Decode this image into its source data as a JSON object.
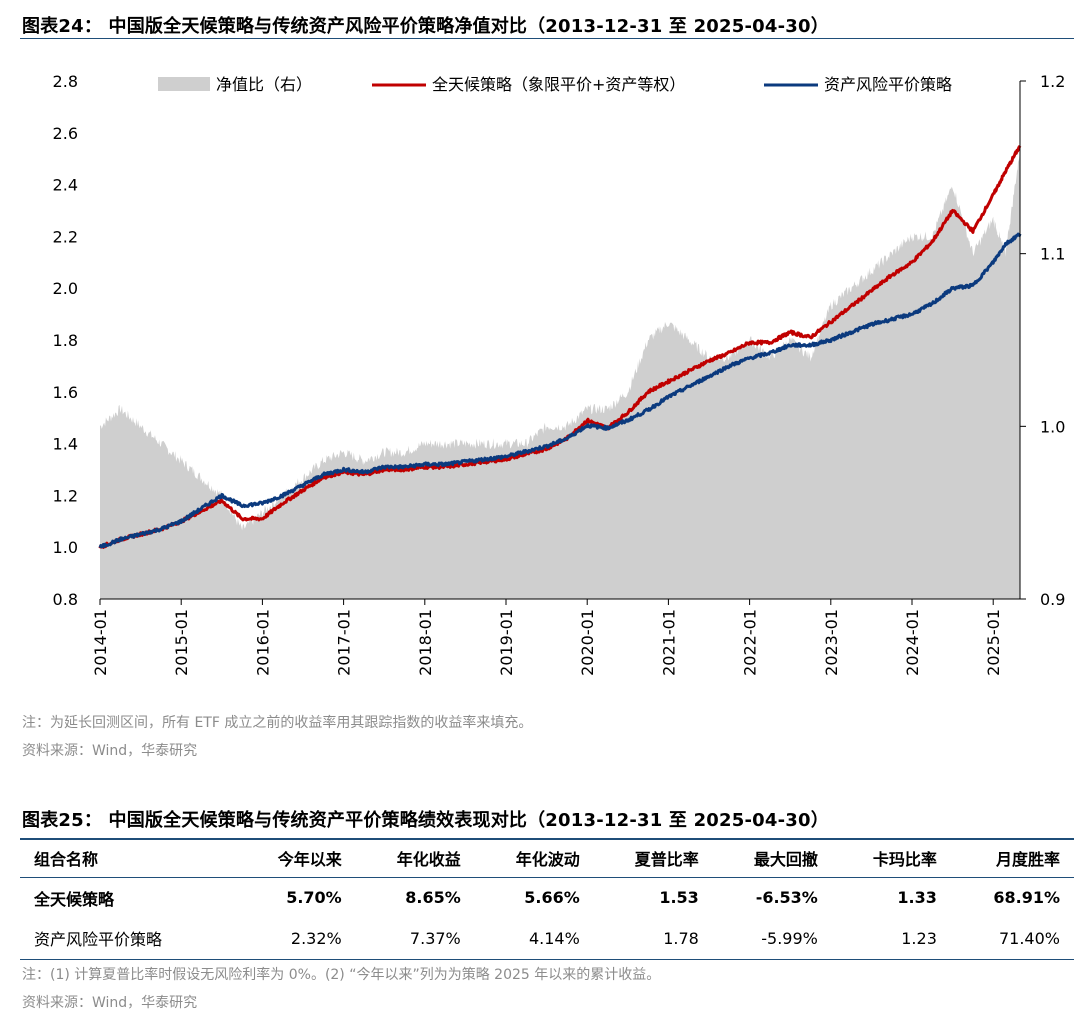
{
  "figure1": {
    "title": "图表24： 中国版全天候策略与传统资产风险平价策略净值对比（2013-12-31 至 2025-04-30）",
    "note": "注：为延长回测区间，所有 ETF 成立之前的收益率用其跟踪指数的收益率来填充。",
    "source": "资料来源：Wind，华泰研究"
  },
  "chart_data": {
    "type": "line",
    "title": "",
    "legend_position": "top",
    "x_ticks": [
      "2014-01",
      "2015-01",
      "2016-01",
      "2017-01",
      "2018-01",
      "2019-01",
      "2020-01",
      "2021-01",
      "2022-01",
      "2023-01",
      "2024-01",
      "2025-01"
    ],
    "x_range": [
      "2014-01",
      "2025-04"
    ],
    "y_left_range": [
      0.8,
      2.8
    ],
    "y_left_ticks": [
      "0.8",
      "1.0",
      "1.2",
      "1.4",
      "1.6",
      "1.8",
      "2.0",
      "2.2",
      "2.4",
      "2.6",
      "2.8"
    ],
    "y_right_range": [
      0.9,
      1.2
    ],
    "y_right_ticks": [
      "0.9",
      "1.0",
      "1.1",
      "1.2"
    ],
    "x_years": [
      2014.0,
      2014.25,
      2014.5,
      2014.75,
      2015.0,
      2015.25,
      2015.5,
      2015.75,
      2016.0,
      2016.25,
      2016.5,
      2016.75,
      2017.0,
      2017.25,
      2017.5,
      2017.75,
      2018.0,
      2018.25,
      2018.5,
      2018.75,
      2019.0,
      2019.25,
      2019.5,
      2019.75,
      2020.0,
      2020.25,
      2020.5,
      2020.75,
      2021.0,
      2021.25,
      2021.5,
      2021.75,
      2022.0,
      2022.25,
      2022.5,
      2022.75,
      2023.0,
      2023.25,
      2023.5,
      2023.75,
      2024.0,
      2024.25,
      2024.5,
      2024.75,
      2025.0,
      2025.15,
      2025.33
    ],
    "series": [
      {
        "name": "全天候策略（象限平价+资产等权）",
        "axis": "left",
        "color": "#c00000",
        "values": [
          1.0,
          1.03,
          1.05,
          1.07,
          1.1,
          1.14,
          1.18,
          1.11,
          1.11,
          1.17,
          1.22,
          1.27,
          1.29,
          1.28,
          1.3,
          1.3,
          1.31,
          1.31,
          1.32,
          1.33,
          1.34,
          1.36,
          1.38,
          1.42,
          1.49,
          1.46,
          1.52,
          1.6,
          1.64,
          1.68,
          1.72,
          1.75,
          1.79,
          1.79,
          1.83,
          1.81,
          1.87,
          1.93,
          1.99,
          2.05,
          2.1,
          2.18,
          2.3,
          2.22,
          2.36,
          2.45,
          2.55
        ]
      },
      {
        "name": "资产风险平价策略",
        "axis": "left",
        "color": "#0b3a7e",
        "values": [
          1.0,
          1.03,
          1.05,
          1.07,
          1.1,
          1.15,
          1.2,
          1.16,
          1.17,
          1.2,
          1.24,
          1.28,
          1.3,
          1.29,
          1.31,
          1.31,
          1.32,
          1.32,
          1.33,
          1.34,
          1.35,
          1.37,
          1.39,
          1.42,
          1.47,
          1.46,
          1.49,
          1.53,
          1.58,
          1.62,
          1.66,
          1.7,
          1.73,
          1.75,
          1.78,
          1.78,
          1.8,
          1.83,
          1.86,
          1.88,
          1.9,
          1.94,
          2.0,
          2.01,
          2.1,
          2.17,
          2.21
        ]
      },
      {
        "name": "净值比（右）",
        "axis": "right",
        "color": "#cfcfcf",
        "type": "area",
        "values": [
          1.0,
          1.01,
          1.0,
          0.99,
          0.98,
          0.97,
          0.96,
          0.94,
          0.95,
          0.96,
          0.97,
          0.98,
          0.985,
          0.98,
          0.985,
          0.985,
          0.99,
          0.99,
          0.99,
          0.99,
          0.99,
          0.99,
          1.0,
          1.0,
          1.01,
          1.01,
          1.02,
          1.05,
          1.06,
          1.05,
          1.04,
          1.04,
          1.05,
          1.04,
          1.05,
          1.04,
          1.07,
          1.08,
          1.09,
          1.1,
          1.11,
          1.11,
          1.14,
          1.1,
          1.12,
          1.1,
          1.16
        ]
      }
    ],
    "legend": [
      {
        "label": "净值比（右）",
        "kind": "area",
        "color": "#cfcfcf"
      },
      {
        "label": "全天候策略（象限平价+资产等权）",
        "kind": "line",
        "color": "#c00000"
      },
      {
        "label": "资产风险平价策略",
        "kind": "line",
        "color": "#0b3a7e"
      }
    ]
  },
  "figure2": {
    "title": "图表25： 中国版全天候策略与传统资产平价策略绩效表现对比（2013-12-31 至 2025-04-30）",
    "headers": [
      "组合名称",
      "今年以来",
      "年化收益",
      "年化波动",
      "夏普比率",
      "最大回撤",
      "卡玛比率",
      "月度胜率"
    ],
    "rows": [
      {
        "cells": [
          "全天候策略",
          "5.70%",
          "8.65%",
          "5.66%",
          "1.53",
          "-6.53%",
          "1.33",
          "68.91%"
        ]
      },
      {
        "cells": [
          "资产风险平价策略",
          "2.32%",
          "7.37%",
          "4.14%",
          "1.78",
          "-5.99%",
          "1.23",
          "71.40%"
        ]
      }
    ],
    "note": "注：(1) 计算夏普比率时假设无风险利率为 0%。(2) “今年以来”列为为策略 2025 年以来的累计收益。",
    "source": "资料来源：Wind，华泰研究"
  }
}
